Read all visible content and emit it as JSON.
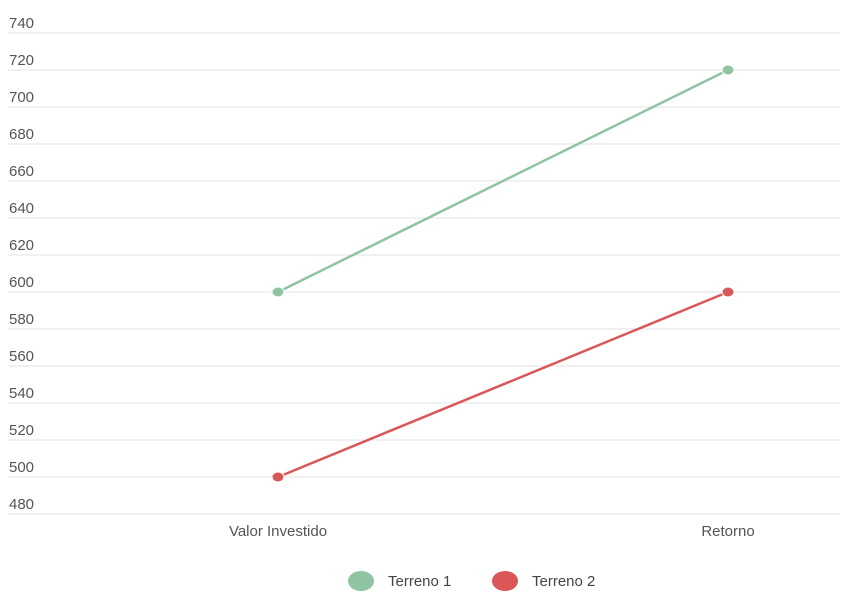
{
  "chart_data": {
    "type": "line",
    "categories": [
      "Valor Investido",
      "Retorno"
    ],
    "series": [
      {
        "name": "Terreno 1",
        "values": [
          600,
          720
        ],
        "color": "#8fc4a2"
      },
      {
        "name": "Terreno 2",
        "values": [
          500,
          600
        ],
        "color": "#d95757"
      }
    ],
    "yticks": [
      480,
      500,
      520,
      540,
      560,
      580,
      600,
      620,
      640,
      660,
      680,
      700,
      720,
      740
    ],
    "ylim": [
      480,
      740
    ],
    "grid": true,
    "legend_position": "bottom-center"
  }
}
